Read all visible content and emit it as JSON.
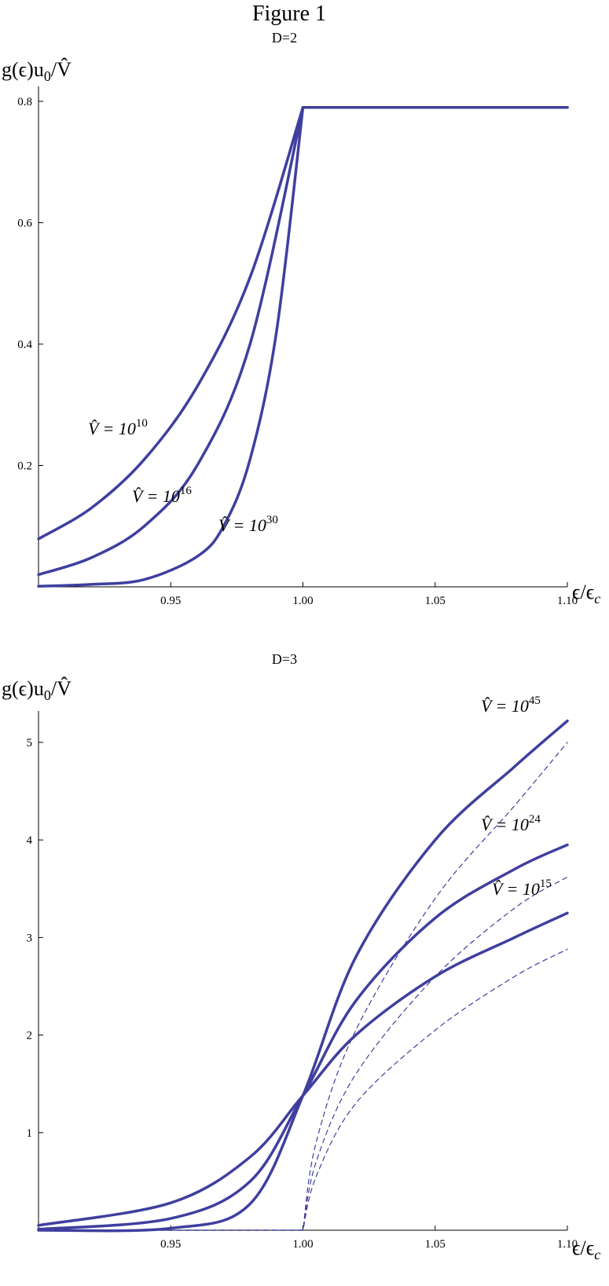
{
  "figure_title": "Figure 1",
  "curve_color": "#3f3f9f",
  "chart_data": [
    {
      "type": "line",
      "title": "D=2",
      "ylabel": "g(ϵ)u0/V̂",
      "xlabel": "ϵ/ϵc",
      "xlim": [
        0.9,
        1.1
      ],
      "ylim": [
        0,
        0.8
      ],
      "x_ticks": [
        0.95,
        1.0,
        1.05,
        1.1
      ],
      "x_tick_labels": [
        "0.95",
        "1.00",
        "1.05",
        "1.10"
      ],
      "y_ticks": [
        0.2,
        0.4,
        0.6,
        0.8
      ],
      "y_tick_labels": [
        "0.2",
        "0.4",
        "0.6",
        "0.8"
      ],
      "series": [
        {
          "name": "V̂ = 10^10",
          "label_base": "V̂ = 10",
          "label_exp": "10",
          "style": "solid",
          "x": [
            0.9,
            0.92,
            0.94,
            0.96,
            0.98,
            1.0,
            1.1
          ],
          "y": [
            0.079,
            0.13,
            0.21,
            0.33,
            0.51,
            0.79,
            0.79
          ]
        },
        {
          "name": "V̂ = 10^16",
          "label_base": "V̂ = 10",
          "label_exp": "16",
          "style": "solid",
          "x": [
            0.9,
            0.92,
            0.94,
            0.96,
            0.98,
            1.0,
            1.1
          ],
          "y": [
            0.02,
            0.048,
            0.1,
            0.2,
            0.4,
            0.79,
            0.79
          ]
        },
        {
          "name": "V̂ = 10^30",
          "label_base": "V̂ = 10",
          "label_exp": "30",
          "style": "solid",
          "x": [
            0.9,
            0.92,
            0.94,
            0.96,
            0.97,
            0.98,
            0.99,
            1.0,
            1.1
          ],
          "y": [
            0.001,
            0.004,
            0.012,
            0.05,
            0.1,
            0.21,
            0.42,
            0.79,
            0.79
          ]
        }
      ]
    },
    {
      "type": "line",
      "title": "D=3",
      "ylabel": "g(ϵ)u0/V̂",
      "xlabel": "ϵ/ϵc",
      "xlim": [
        0.9,
        1.1
      ],
      "ylim": [
        0,
        5.3
      ],
      "x_ticks": [
        0.95,
        1.0,
        1.05,
        1.1
      ],
      "x_tick_labels": [
        "0.95",
        "1.00",
        "1.05",
        "1.10"
      ],
      "y_ticks": [
        1,
        2,
        3,
        4,
        5
      ],
      "y_tick_labels": [
        "1",
        "2",
        "3",
        "4",
        "5"
      ],
      "series": [
        {
          "name": "V̂ = 10^45",
          "label_base": "V̂ = 10",
          "label_exp": "45",
          "style": "solid",
          "x": [
            0.9,
            0.95,
            0.98,
            1.0,
            1.02,
            1.05,
            1.08,
            1.1
          ],
          "y": [
            0.0,
            0.02,
            0.27,
            1.38,
            2.8,
            4.0,
            4.75,
            5.22
          ]
        },
        {
          "name": "V̂ = 10^24",
          "label_base": "V̂ = 10",
          "label_exp": "24",
          "style": "solid",
          "x": [
            0.9,
            0.95,
            0.98,
            1.0,
            1.02,
            1.05,
            1.08,
            1.1
          ],
          "y": [
            0.01,
            0.12,
            0.5,
            1.38,
            2.35,
            3.2,
            3.7,
            3.95
          ]
        },
        {
          "name": "V̂ = 10^15",
          "label_base": "V̂ = 10",
          "label_exp": "15",
          "style": "solid",
          "x": [
            0.9,
            0.95,
            0.98,
            1.0,
            1.02,
            1.05,
            1.08,
            1.1
          ],
          "y": [
            0.05,
            0.28,
            0.75,
            1.38,
            2.0,
            2.6,
            3.0,
            3.25
          ]
        },
        {
          "name": "",
          "style": "dashed",
          "x": [
            0.9,
            0.99,
            1.0,
            1.005,
            1.02,
            1.05,
            1.08,
            1.1
          ],
          "y": [
            0.0,
            0.0,
            0.0,
            0.9,
            2.05,
            3.4,
            4.35,
            5.0
          ]
        },
        {
          "name": "",
          "style": "dashed",
          "x": [
            0.9,
            0.99,
            1.0,
            1.005,
            1.02,
            1.05,
            1.08,
            1.1
          ],
          "y": [
            0.0,
            0.0,
            0.0,
            0.7,
            1.6,
            2.6,
            3.3,
            3.62
          ]
        },
        {
          "name": "",
          "style": "dashed",
          "x": [
            0.9,
            0.99,
            1.0,
            1.005,
            1.02,
            1.05,
            1.08,
            1.1
          ],
          "y": [
            0.0,
            0.0,
            0.0,
            0.55,
            1.3,
            2.05,
            2.6,
            2.88
          ]
        }
      ]
    }
  ]
}
